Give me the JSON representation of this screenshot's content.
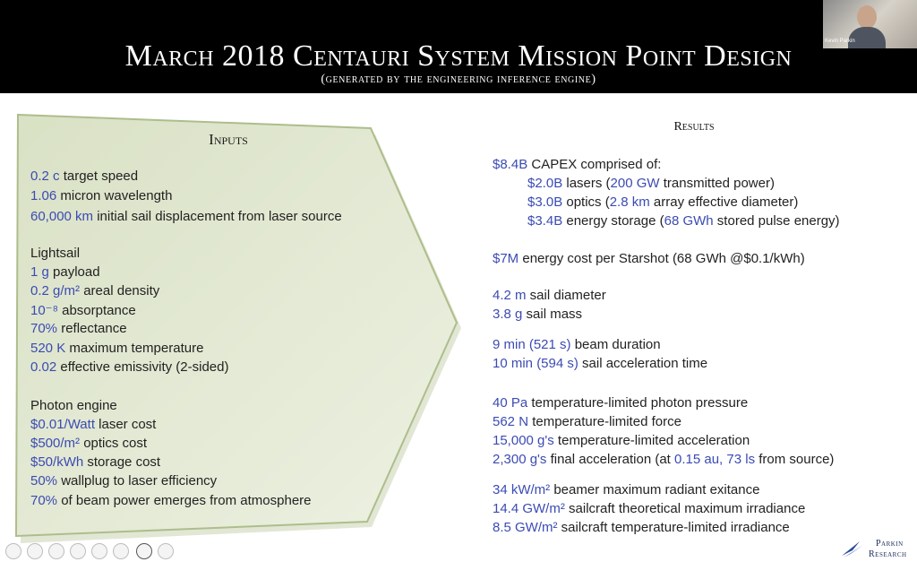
{
  "header": {
    "title": "March 2018 Centauri System Mission Point Design",
    "subtitle": "(generated by the engineering inference engine)"
  },
  "video": {
    "participant_name": "Kevin Parkin"
  },
  "inputs": {
    "title": "Inputs",
    "general": [
      {
        "value": "0.2 c",
        "text": " target speed"
      },
      {
        "value": "1.06",
        "text": " micron wavelength"
      },
      {
        "value": "60,000 km",
        "text": " initial sail displacement from laser source"
      }
    ],
    "lightsail_heading": "Lightsail",
    "lightsail": [
      {
        "value": "1 g",
        "text": " payload"
      },
      {
        "value": "0.2 g/m²",
        "text": " areal density"
      },
      {
        "value": "10⁻⁸",
        "text": " absorptance"
      },
      {
        "value": "70%",
        "text": " reflectance"
      },
      {
        "value": "520 K",
        "text": " maximum temperature"
      },
      {
        "value": "0.02",
        "text": " effective emissivity (2-sided)"
      }
    ],
    "engine_heading": "Photon engine",
    "engine": [
      {
        "value": "$0.01/Watt",
        "text": " laser cost"
      },
      {
        "value": "$500/m²",
        "text": " optics cost"
      },
      {
        "value": "$50/kWh",
        "text": " storage cost"
      },
      {
        "value": "50%",
        "text": " wallplug to laser efficiency"
      },
      {
        "value": "70%",
        "text": " of beam power emerges from atmosphere"
      }
    ]
  },
  "results": {
    "title": "Results",
    "capex": {
      "value": "$8.4B",
      "text": " CAPEX comprised of:"
    },
    "capex_items": [
      {
        "v1": "$2.0B",
        "t1": " lasers (",
        "v2": "200 GW",
        "t2": " transmitted power)"
      },
      {
        "v1": "$3.0B",
        "t1": " optics (",
        "v2": "2.8 km",
        "t2": " array effective diameter)"
      },
      {
        "v1": "$3.4B",
        "t1": " energy storage (",
        "v2": "68 GWh",
        "t2": " stored pulse energy)"
      }
    ],
    "energy_cost": {
      "value": "$7M",
      "text": " energy cost per Starshot (68 GWh @$0.1/kWh)"
    },
    "sail": [
      {
        "value": "4.2 m",
        "text": " sail diameter"
      },
      {
        "value": "3.8 g",
        "text": " sail mass"
      }
    ],
    "timing": [
      {
        "value": "9 min (521 s)",
        "text": " beam duration"
      },
      {
        "value": "10 min (594 s)",
        "text": " sail acceleration time"
      }
    ],
    "forces": [
      {
        "value": "40 Pa",
        "text": " temperature-limited photon pressure"
      },
      {
        "value": "562 N",
        "text": " temperature-limited force"
      },
      {
        "value": "15,000 g's",
        "text": " temperature-limited acceleration"
      }
    ],
    "final_accel": {
      "v1": "2,300 g's",
      "t1": " final acceleration (at ",
      "v2": "0.15 au, 73 ls",
      "t2": " from source)"
    },
    "irradiance": [
      {
        "value": "34 kW/m²",
        "text": " beamer maximum radiant exitance"
      },
      {
        "value": "14.4 GW/m²",
        "text": " sailcraft theoretical maximum irradiance"
      },
      {
        "value": "8.5 GW/m²",
        "text": " sailcraft temperature-limited irradiance"
      }
    ]
  },
  "logo": {
    "line1": "Parkin",
    "line2": "Research"
  },
  "colors": {
    "value_blue": "#3b4bb3",
    "panel_fill": "#dfe6cd",
    "panel_border": "#b7c49a"
  }
}
